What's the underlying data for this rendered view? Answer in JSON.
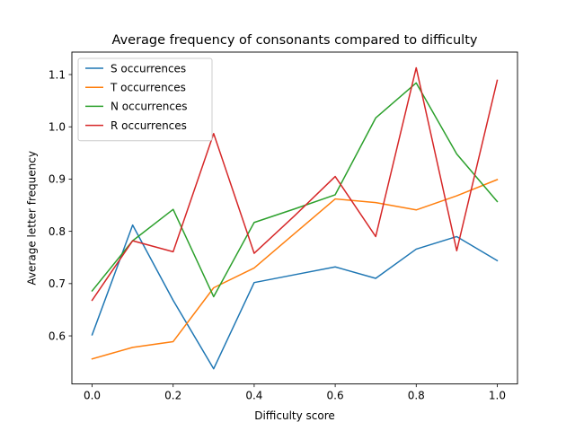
{
  "chart_data": {
    "type": "line",
    "title": "Average frequency of consonants compared to difficulty",
    "xlabel": "Difficulty score",
    "ylabel": "Average letter frequency",
    "xlim": [
      -0.05,
      1.05
    ],
    "ylim": [
      0.508,
      1.143
    ],
    "xticks": [
      "0.0",
      "0.2",
      "0.4",
      "0.6",
      "0.8",
      "1.0"
    ],
    "yticks": [
      "0.6",
      "0.7",
      "0.8",
      "0.9",
      "1.0",
      "1.1"
    ],
    "grid": false,
    "legend_position": "top-left",
    "x": [
      0.0,
      0.1,
      0.2,
      0.3,
      0.4,
      0.5,
      0.6,
      0.7,
      0.8,
      0.9,
      1.0
    ],
    "series": [
      {
        "name": "S occurrences",
        "color": "#1f77b4",
        "values": [
          0.602,
          0.812,
          0.668,
          0.537,
          0.702,
          0.717,
          0.732,
          0.71,
          0.766,
          0.79,
          0.744
        ]
      },
      {
        "name": "T occurrences",
        "color": "#ff7f0e",
        "values": [
          0.556,
          0.578,
          0.589,
          0.692,
          0.73,
          0.796,
          0.862,
          0.855,
          0.841,
          0.868,
          0.899
        ]
      },
      {
        "name": "N occurrences",
        "color": "#2ca02c",
        "values": [
          0.686,
          0.782,
          0.842,
          0.675,
          0.817,
          0.843,
          0.87,
          1.017,
          1.084,
          0.948,
          0.857
        ]
      },
      {
        "name": "R occurrences",
        "color": "#d62728",
        "values": [
          0.668,
          0.782,
          0.761,
          0.987,
          0.758,
          0.83,
          0.905,
          0.79,
          1.113,
          0.763,
          1.089
        ]
      }
    ]
  }
}
